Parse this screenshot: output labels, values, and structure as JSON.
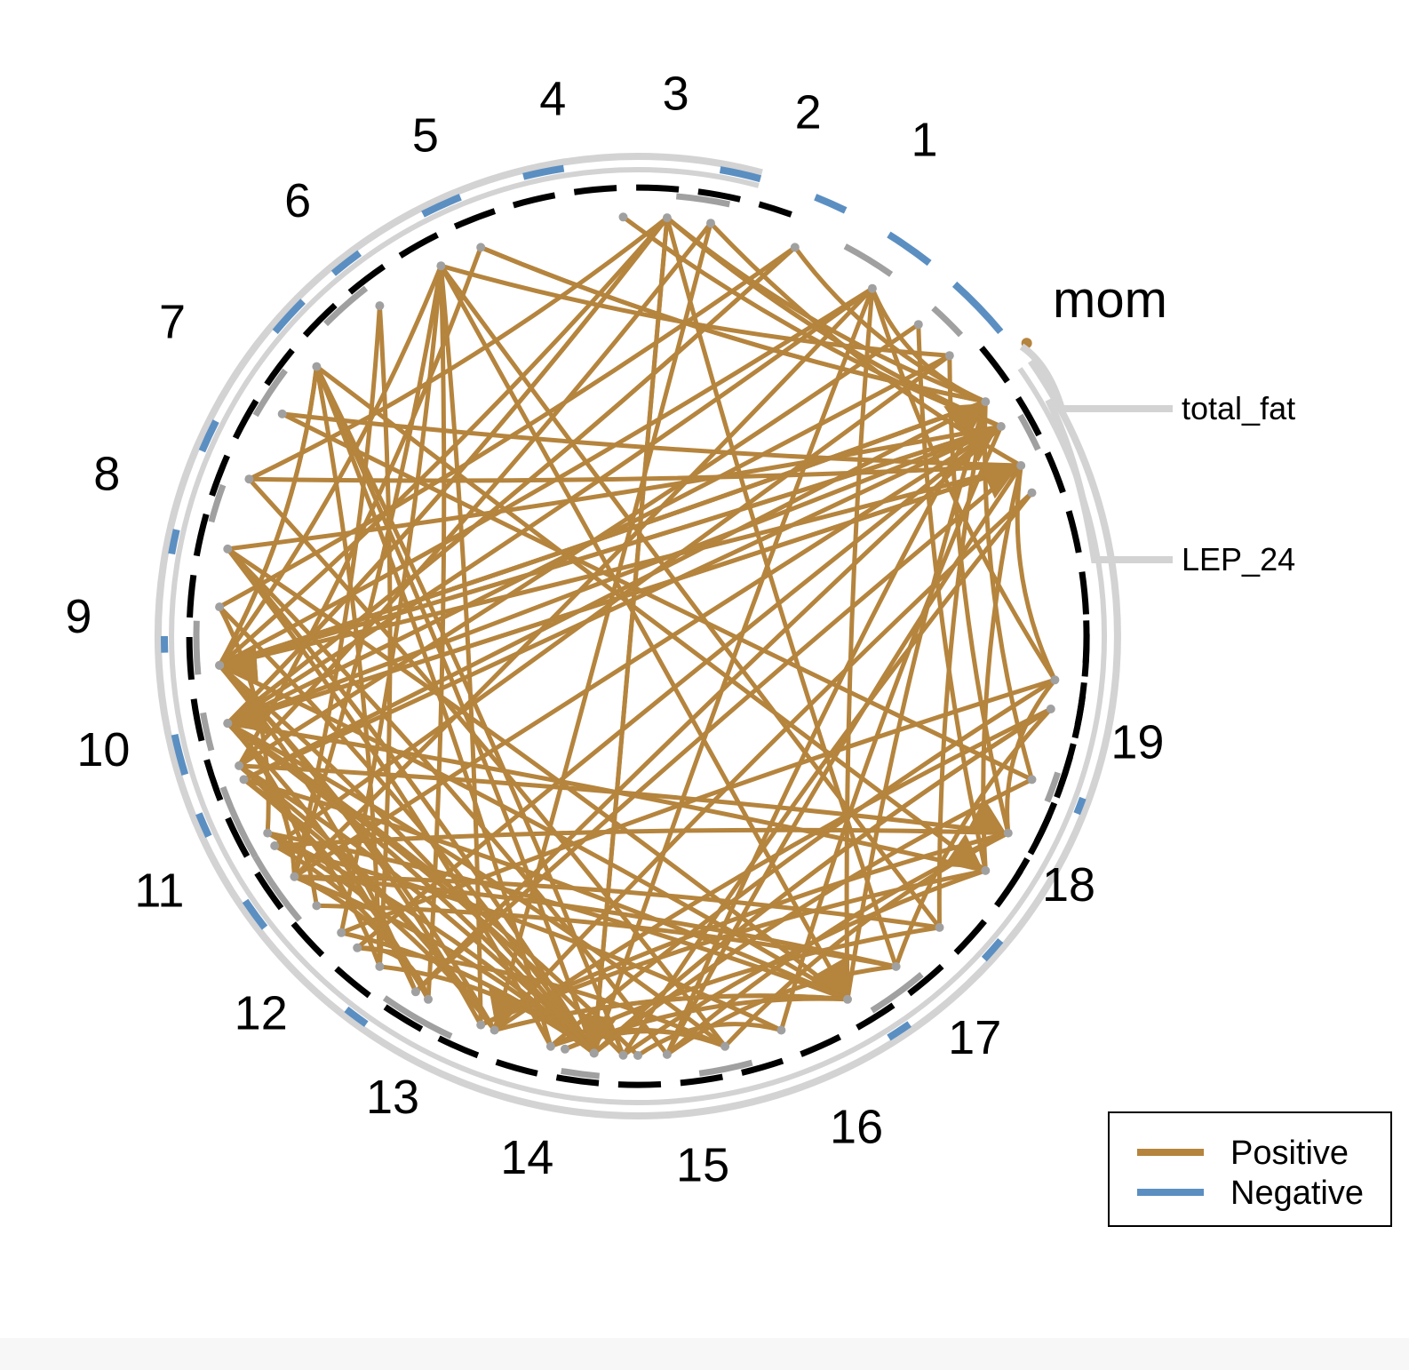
{
  "colors": {
    "positive": "#B5843D",
    "negative": "#5B8FC2",
    "ring": "#D3D3D3",
    "dash": "#000000",
    "gray": "#A0A0A0"
  },
  "segments": [
    "1",
    "2",
    "3",
    "4",
    "5",
    "6",
    "7",
    "8",
    "9",
    "10",
    "11",
    "12",
    "13",
    "14",
    "15",
    "16",
    "17",
    "18",
    "19"
  ],
  "group_label": "mom",
  "variables": [
    "total_fat",
    "LEP_24"
  ],
  "legend": {
    "positive_label": "Positive",
    "negative_label": "Negative"
  }
}
